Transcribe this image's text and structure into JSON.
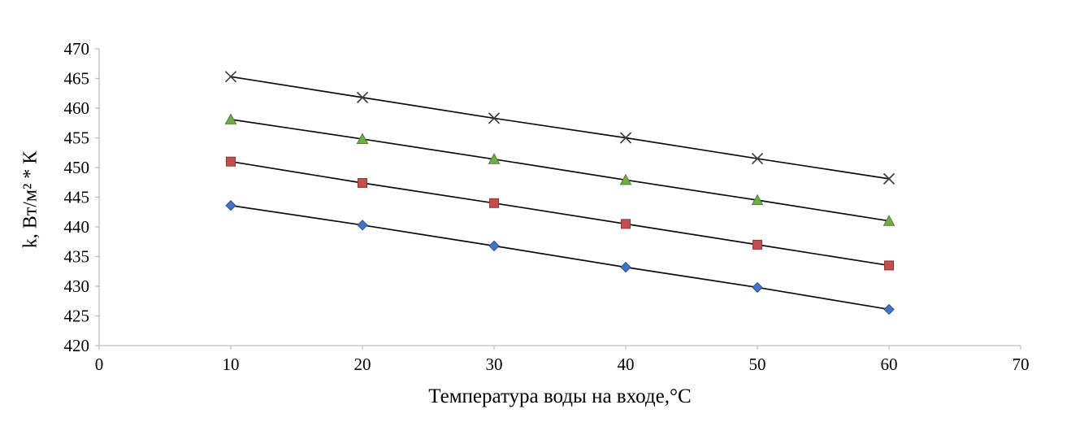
{
  "chart_data": {
    "type": "line",
    "title": "",
    "xlabel": "Температура воды на входе,°С",
    "ylabel": "k, Вт/м² * К",
    "x": [
      10,
      20,
      30,
      40,
      50,
      60
    ],
    "series": [
      {
        "name": "series-x-cross",
        "marker": "x-cross",
        "color": "#3f3f3f",
        "edge": "#3f3f3f",
        "line_color": "#0d0d0d",
        "values": [
          465.3,
          461.8,
          458.3,
          455.0,
          451.5,
          448.1
        ]
      },
      {
        "name": "series-triangle",
        "marker": "triangle",
        "color": "#70AD47",
        "edge": "#507E32",
        "line_color": "#0d0d0d",
        "values": [
          458.1,
          454.8,
          451.4,
          447.9,
          444.5,
          441.0
        ]
      },
      {
        "name": "series-square",
        "marker": "square",
        "color": "#C0504D",
        "edge": "#943634",
        "line_color": "#0d0d0d",
        "values": [
          451.0,
          447.4,
          444.0,
          440.5,
          437.0,
          433.5
        ]
      },
      {
        "name": "series-diamond",
        "marker": "diamond",
        "color": "#4472C4",
        "edge": "#2E5395",
        "line_color": "#0d0d0d",
        "values": [
          443.6,
          440.3,
          436.8,
          433.2,
          429.8,
          426.1
        ]
      }
    ],
    "xlim": [
      0,
      70
    ],
    "ylim": [
      420,
      470
    ],
    "x_ticks": [
      0,
      10,
      20,
      30,
      40,
      50,
      60,
      70
    ],
    "y_ticks": [
      420,
      425,
      430,
      435,
      440,
      445,
      450,
      455,
      460,
      465,
      470
    ],
    "grid": false,
    "legend": "none",
    "axis_color": "#BFBFBF"
  }
}
